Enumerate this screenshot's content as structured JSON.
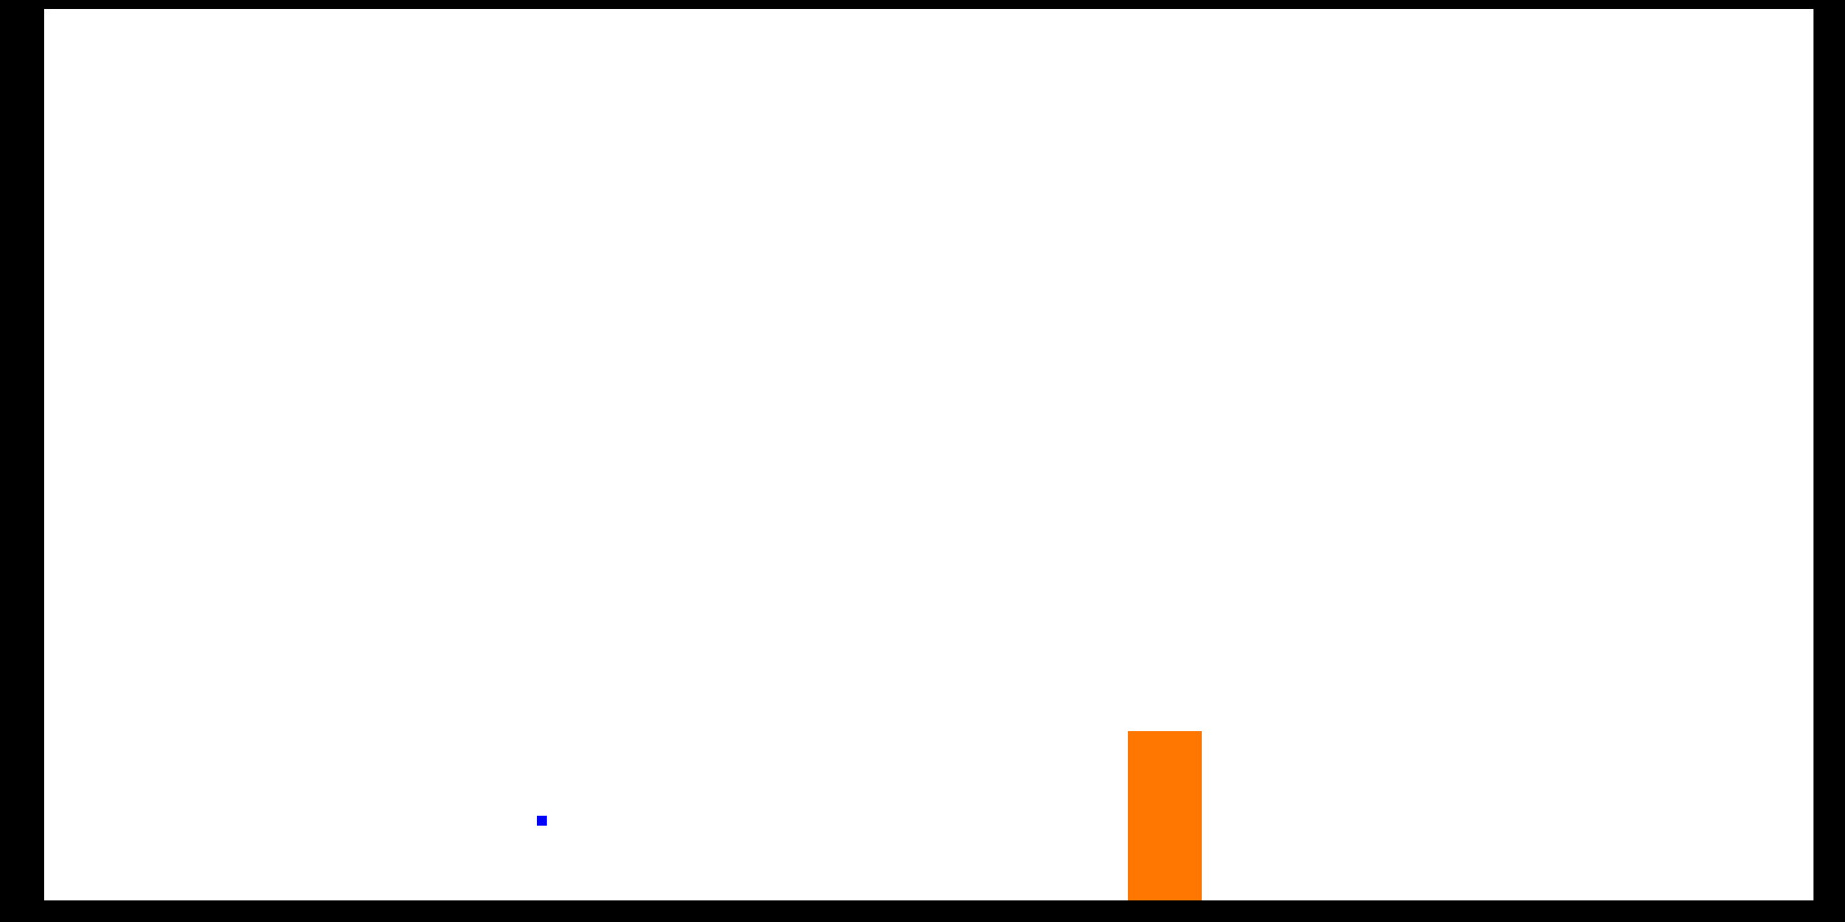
{
  "game": {
    "background_color": "#000000",
    "play_area_color": "#ffffff",
    "player": {
      "shape": "square",
      "color": "#0000ff"
    },
    "obstacle": {
      "shape": "rectangle",
      "color": "#ff7700"
    }
  }
}
